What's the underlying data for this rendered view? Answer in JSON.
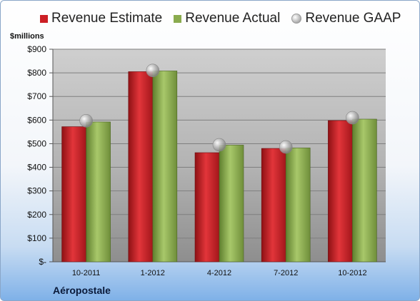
{
  "chart_data": {
    "type": "bar",
    "categories": [
      "10-2011",
      "1-2012",
      "4-2012",
      "7-2012",
      "10-2012"
    ],
    "series": [
      {
        "name": "Revenue Estimate",
        "values": [
          572,
          805,
          462,
          480,
          598
        ],
        "color": "#cc1f25"
      },
      {
        "name": "Revenue Actual",
        "values": [
          592,
          808,
          494,
          482,
          604
        ],
        "color": "#8aab4e"
      },
      {
        "name": "Revenue GAAP",
        "values": [
          597,
          810,
          495,
          486,
          610
        ],
        "color": "#b0b0b0",
        "marker": "sphere"
      }
    ],
    "ylabel": "$millions",
    "ylim": [
      0,
      900
    ],
    "yticks": [
      0,
      100,
      200,
      300,
      400,
      500,
      600,
      700,
      800,
      900
    ],
    "ytick_labels": [
      "$-",
      "$100",
      "$200",
      "$300",
      "$400",
      "$500",
      "$600",
      "$700",
      "$800",
      "$900"
    ],
    "grid": true,
    "legend_position": "top",
    "company": "Aéropostale"
  }
}
